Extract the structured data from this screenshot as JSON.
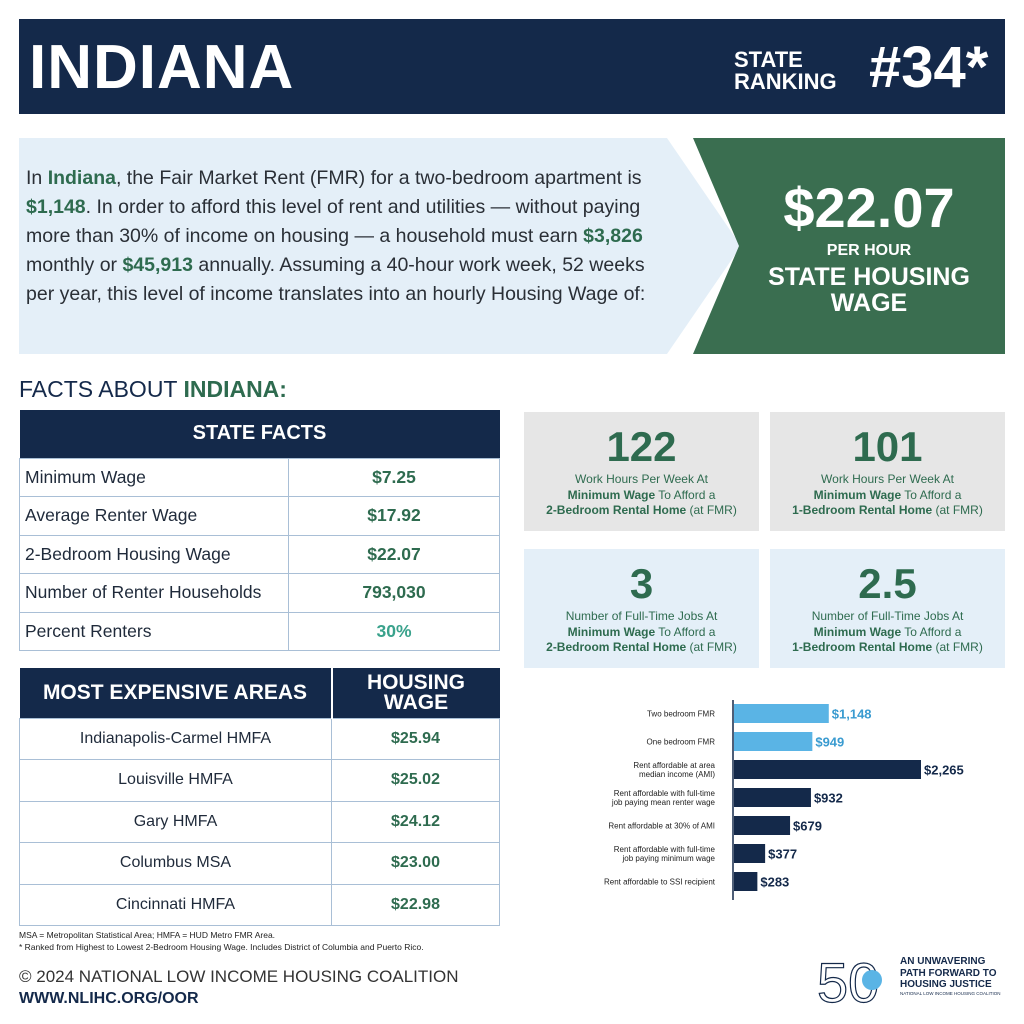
{
  "header": {
    "state": "INDIANA",
    "ranking_label_1": "STATE",
    "ranking_label_2": "RANKING",
    "ranking_value": "#34*"
  },
  "intro": {
    "t1": "In ",
    "state": "Indiana",
    "t2": ", the Fair Market Rent (FMR) for a two-bedroom apartment is ",
    "fmr": "$1,148",
    "t3": ". In order to afford this level of rent and utilities — without paying more than 30% of income on housing — a household must earn ",
    "monthly": "$3,826",
    "t4": " monthly or ",
    "annual": "$45,913",
    "t5": " annually. Assuming a 40-hour work week, 52 weeks per year, this level of income translates into an hourly Housing Wage of:"
  },
  "housing_wage": {
    "amount": "$22.07",
    "per": "PER HOUR",
    "label_1": "STATE HOUSING",
    "label_2": "WAGE"
  },
  "facts_heading": {
    "prefix": "FACTS ABOUT ",
    "state": "INDIANA:"
  },
  "state_facts": {
    "title": "STATE FACTS",
    "rows": [
      {
        "label": "Minimum Wage",
        "value": "$7.25"
      },
      {
        "label": "Average Renter Wage",
        "value": "$17.92"
      },
      {
        "label": "2-Bedroom Housing Wage",
        "value": "$22.07"
      },
      {
        "label": "Number of Renter Households",
        "value": "793,030"
      },
      {
        "label": "Percent Renters",
        "value": "30%"
      }
    ]
  },
  "areas": {
    "col1": "MOST EXPENSIVE AREAS",
    "col2_1": "HOUSING",
    "col2_2": "WAGE",
    "rows": [
      {
        "label": "Indianapolis-Carmel HMFA",
        "value": "$25.94"
      },
      {
        "label": "Louisville HMFA",
        "value": "$25.02"
      },
      {
        "label": "Gary HMFA",
        "value": "$24.12"
      },
      {
        "label": "Columbus MSA",
        "value": "$23.00"
      },
      {
        "label": "Cincinnati HMFA",
        "value": "$22.98"
      }
    ]
  },
  "footnotes": {
    "line1": "MSA = Metropolitan Statistical Area; HMFA = HUD Metro FMR Area.",
    "line2": "* Ranked from Highest to Lowest 2-Bedroom Housing Wage. Includes District of Columbia and Puerto Rico."
  },
  "footer": {
    "copyright": "© 2024 NATIONAL LOW INCOME HOUSING COALITION",
    "url": "WWW.NLIHC.ORG/OOR"
  },
  "cards": [
    {
      "num": "122",
      "l1": "Work Hours Per Week At",
      "l2b": "Minimum Wage",
      "l2": " To Afford a",
      "l3b": "2-Bedroom Rental Home",
      "l3": " (at FMR)"
    },
    {
      "num": "101",
      "l1": "Work Hours Per Week At",
      "l2b": "Minimum Wage",
      "l2": " To Afford a",
      "l3b": "1-Bedroom Rental Home",
      "l3": " (at FMR)"
    },
    {
      "num": "3",
      "l1": "Number of Full-Time Jobs At",
      "l2b": "Minimum Wage",
      "l2": " To Afford a",
      "l3b": "2-Bedroom Rental Home",
      "l3": " (at FMR)"
    },
    {
      "num": "2.5",
      "l1": "Number of Full-Time Jobs At",
      "l2b": "Minimum Wage",
      "l2": " To Afford a",
      "l3b": "1-Bedroom Rental Home",
      "l3": " (at FMR)"
    }
  ],
  "chart_data": {
    "type": "bar",
    "orientation": "horizontal",
    "categories": [
      [
        "Two bedroom FMR"
      ],
      [
        "One bedroom FMR"
      ],
      [
        "Rent affordable at area",
        "median income (AMI)"
      ],
      [
        "Rent affordable with full-time",
        "job paying mean renter wage"
      ],
      [
        "Rent affordable at 30% of AMI"
      ],
      [
        "Rent affordable with full-time",
        "job paying minimum wage"
      ],
      [
        "Rent affordable to SSI recipient"
      ]
    ],
    "values": [
      1148,
      949,
      2265,
      932,
      679,
      377,
      283
    ],
    "labels": [
      "$1,148",
      "$949",
      "$2,265",
      "$932",
      "$679",
      "$377",
      "$283"
    ],
    "colors": [
      "#5ab4e5",
      "#5ab4e5",
      "#14294a",
      "#14294a",
      "#14294a",
      "#14294a",
      "#14294a"
    ],
    "label_colors": [
      "#3a9bd0",
      "#3a9bd0",
      "#14294a",
      "#14294a",
      "#14294a",
      "#14294a",
      "#14294a"
    ],
    "xlim": [
      0,
      2265
    ]
  },
  "logo": {
    "number": "50",
    "tag1": "AN UNWAVERING",
    "tag2": "PATH FORWARD TO",
    "tag3": "HOUSING JUSTICE",
    "tag4": "NATIONAL LOW INCOME HOUSING COALITION"
  }
}
